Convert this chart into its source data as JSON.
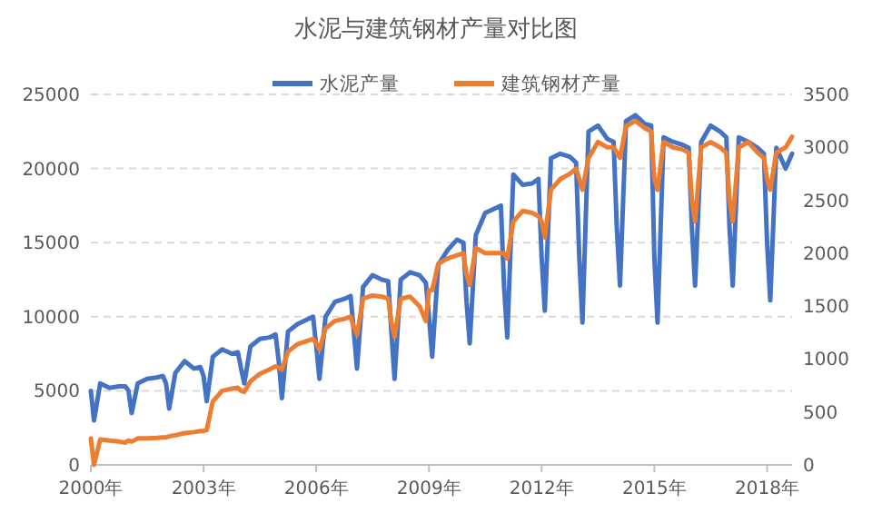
{
  "chart_data": {
    "type": "line",
    "title": "水泥与建筑钢材产量对比图",
    "x": [
      "2000-01",
      "2000-02",
      "2000-04",
      "2000-07",
      "2000-10",
      "2000-12",
      "2001-01",
      "2001-02",
      "2001-04",
      "2001-07",
      "2001-10",
      "2001-12",
      "2002-01",
      "2002-02",
      "2002-04",
      "2002-07",
      "2002-10",
      "2002-12",
      "2003-01",
      "2003-02",
      "2003-04",
      "2003-07",
      "2003-10",
      "2003-12",
      "2004-01",
      "2004-02",
      "2004-04",
      "2004-07",
      "2004-10",
      "2004-12",
      "2005-01",
      "2005-02",
      "2005-04",
      "2005-07",
      "2005-10",
      "2005-12",
      "2006-01",
      "2006-02",
      "2006-04",
      "2006-07",
      "2006-10",
      "2006-12",
      "2007-01",
      "2007-02",
      "2007-04",
      "2007-07",
      "2007-10",
      "2007-12",
      "2008-01",
      "2008-02",
      "2008-04",
      "2008-07",
      "2008-10",
      "2008-12",
      "2009-01",
      "2009-02",
      "2009-04",
      "2009-07",
      "2009-10",
      "2009-12",
      "2010-01",
      "2010-02",
      "2010-04",
      "2010-07",
      "2010-10",
      "2010-12",
      "2011-01",
      "2011-02",
      "2011-04",
      "2011-07",
      "2011-10",
      "2011-12",
      "2012-01",
      "2012-02",
      "2012-04",
      "2012-07",
      "2012-10",
      "2012-12",
      "2013-01",
      "2013-02",
      "2013-04",
      "2013-07",
      "2013-10",
      "2013-12",
      "2014-01",
      "2014-02",
      "2014-04",
      "2014-07",
      "2014-10",
      "2014-12",
      "2015-01",
      "2015-02",
      "2015-04",
      "2015-07",
      "2015-10",
      "2015-12",
      "2016-01",
      "2016-02",
      "2016-04",
      "2016-07",
      "2016-10",
      "2016-12",
      "2017-01",
      "2017-02",
      "2017-04",
      "2017-07",
      "2017-10",
      "2017-12",
      "2018-01",
      "2018-02",
      "2018-04",
      "2018-07",
      "2018-09"
    ],
    "series": [
      {
        "name": "水泥产量",
        "color": "#4472c4",
        "values": [
          5000,
          3000,
          5500,
          5200,
          5300,
          5300,
          5000,
          3500,
          5500,
          5800,
          5900,
          6000,
          5500,
          3800,
          6200,
          7000,
          6500,
          6600,
          6000,
          4300,
          7300,
          7800,
          7500,
          7600,
          6500,
          5500,
          8000,
          8500,
          8600,
          8800,
          7000,
          4500,
          9000,
          9500,
          9800,
          10000,
          8000,
          5800,
          10000,
          11000,
          11200,
          11400,
          9000,
          6500,
          12000,
          12800,
          12500,
          12400,
          9000,
          5800,
          12500,
          13000,
          12800,
          12300,
          10000,
          7300,
          13500,
          14500,
          15200,
          15000,
          11000,
          8200,
          15500,
          17000,
          17300,
          17500,
          12000,
          8600,
          19600,
          18900,
          19000,
          19300,
          14000,
          10400,
          20700,
          21000,
          20800,
          20400,
          14000,
          9600,
          22500,
          22900,
          22000,
          21800,
          16000,
          12100,
          23200,
          23600,
          23000,
          22900,
          14000,
          9600,
          22100,
          21800,
          21600,
          21400,
          16000,
          12100,
          21800,
          22900,
          22500,
          22100,
          16000,
          12100,
          22100,
          21800,
          21400,
          21000,
          15000,
          11100,
          21400,
          20000,
          21000
        ]
      },
      {
        "name": "建筑钢材产量",
        "color": "#ed7d31",
        "axis": "y2",
        "values": [
          250,
          0,
          240,
          230,
          220,
          210,
          230,
          220,
          250,
          250,
          255,
          260,
          260,
          270,
          280,
          300,
          310,
          320,
          320,
          330,
          600,
          700,
          720,
          730,
          700,
          690,
          790,
          860,
          900,
          930,
          920,
          900,
          1070,
          1140,
          1170,
          1190,
          1150,
          1090,
          1290,
          1360,
          1380,
          1400,
          1300,
          1230,
          1570,
          1600,
          1590,
          1570,
          1350,
          1210,
          1570,
          1590,
          1500,
          1360,
          1650,
          1650,
          1900,
          1950,
          1980,
          2000,
          1800,
          1700,
          2050,
          2000,
          2000,
          2000,
          2000,
          1950,
          2300,
          2400,
          2380,
          2350,
          2300,
          2150,
          2600,
          2700,
          2750,
          2800,
          2700,
          2600,
          2900,
          3050,
          3000,
          3000,
          2950,
          2900,
          3200,
          3250,
          3180,
          3150,
          2700,
          2600,
          3050,
          3000,
          2980,
          2950,
          2500,
          2300,
          3000,
          3050,
          3000,
          2950,
          2500,
          2300,
          3000,
          3050,
          2950,
          2900,
          2700,
          2600,
          2950,
          3000,
          3100
        ]
      }
    ],
    "xlim": [
      "2000-01",
      "2018-09"
    ],
    "xticks": [
      {
        "value": "2000-01",
        "label": "2000年"
      },
      {
        "value": "2003-01",
        "label": "2003年"
      },
      {
        "value": "2006-01",
        "label": "2006年"
      },
      {
        "value": "2009-01",
        "label": "2009年"
      },
      {
        "value": "2012-01",
        "label": "2012年"
      },
      {
        "value": "2015-01",
        "label": "2015年"
      },
      {
        "value": "2018-01",
        "label": "2018年"
      }
    ],
    "ylim": [
      0,
      25000
    ],
    "yticks": [
      0,
      5000,
      10000,
      15000,
      20000,
      25000
    ],
    "y2lim": [
      0,
      3500
    ],
    "y2ticks": [
      0,
      500,
      1000,
      1500,
      2000,
      2500,
      3000,
      3500
    ],
    "grid": "y",
    "legend": "top",
    "marker": "none",
    "line_style": "solid"
  }
}
